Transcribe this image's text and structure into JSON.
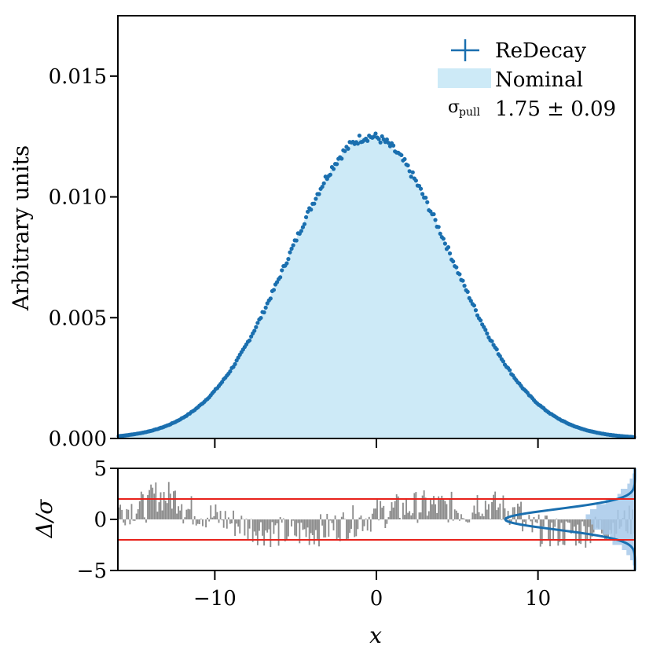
{
  "chart_data": {
    "type": "scatter",
    "x": {
      "label": "x",
      "range": [
        -16,
        16
      ],
      "ticks": [
        -10,
        0,
        10
      ],
      "tick_labels": [
        "−10",
        "0",
        "10"
      ]
    },
    "main": {
      "ylabel": "Arbitrary units",
      "ylim": [
        0,
        0.0175
      ],
      "yticks": [
        0.0,
        0.005,
        0.01,
        0.015
      ],
      "ytick_labels": [
        "0.000",
        "0.005",
        "0.010",
        "0.015"
      ],
      "series": [
        {
          "name": "ReDecay",
          "kind": "points",
          "color": "#1a6faf",
          "model": "gaussian",
          "amplitude": 0.0125,
          "mean": -0.4,
          "sigma": 5.0
        },
        {
          "name": "Nominal",
          "kind": "filled-histogram",
          "color": "#cdeaf7",
          "model": "gaussian",
          "amplitude": 0.0125,
          "mean": -0.4,
          "sigma": 5.0
        }
      ]
    },
    "pull": {
      "ylabel": "Δ/σ",
      "ylim": [
        -5,
        5
      ],
      "yticks": [
        -5,
        0,
        5
      ],
      "ytick_labels": [
        "−5",
        "0",
        "5"
      ],
      "bands": [
        -2,
        2
      ],
      "bar_color": "#8c8c8c",
      "band_color": "#e8221c",
      "gaussian_color": "#1a6faf",
      "hist_color": "#a7c9ea",
      "note": "pull histogram projected on the right edge with a Gaussian overlay"
    },
    "legend": {
      "redecay": "ReDecay",
      "nominal": "Nominal",
      "sigma_label": "σ",
      "sigma_subscript": "pull",
      "sigma_value": "1.75 ± 0.09"
    }
  }
}
